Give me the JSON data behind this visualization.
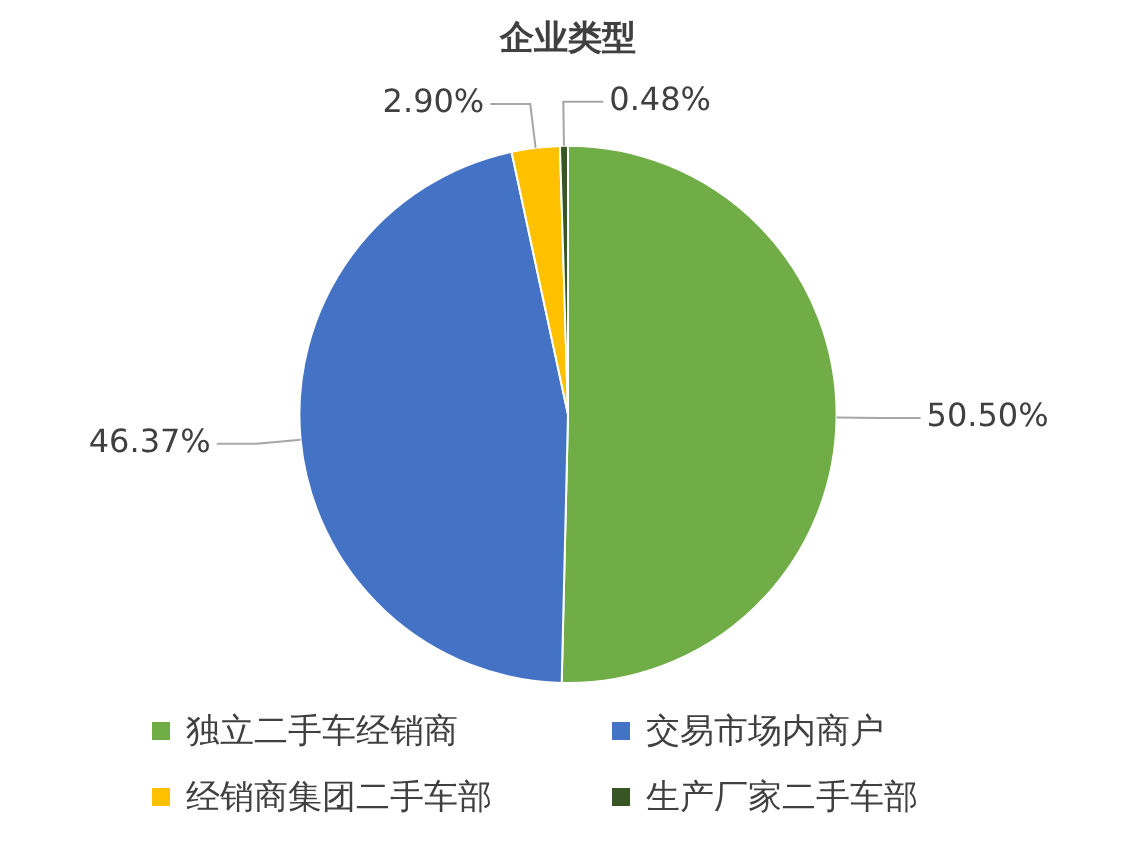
{
  "chart_data": {
    "type": "pie",
    "title": "企业类型",
    "categories": [
      "独立二手车经销商",
      "交易市场内商户",
      "经销商集团二手车部",
      "生产厂家二手车部"
    ],
    "values": [
      50.5,
      46.37,
      2.9,
      0.48
    ],
    "colors": [
      "#70ad47",
      "#4472c4",
      "#ffc000",
      "#375623"
    ],
    "value_labels": [
      "50.50%",
      "46.37%",
      "2.90%",
      "0.48%"
    ],
    "legend": "bottom"
  }
}
